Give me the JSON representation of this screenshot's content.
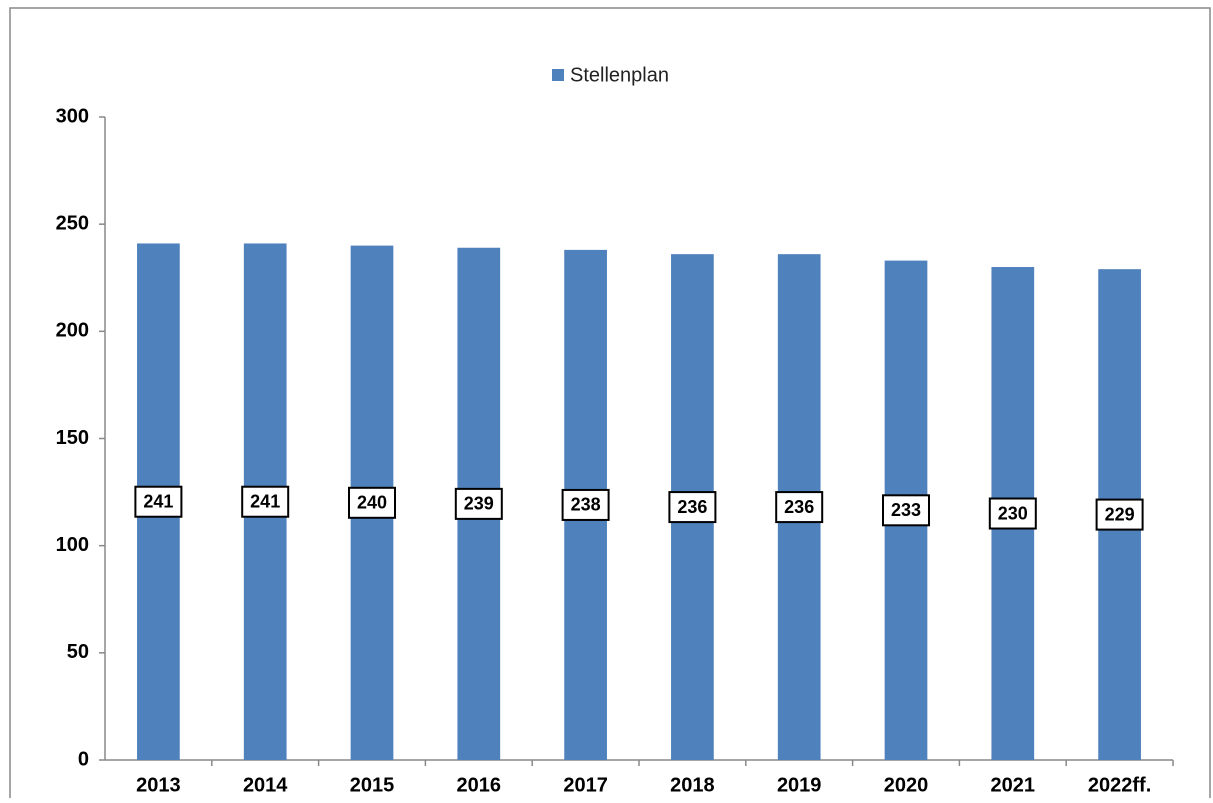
{
  "chart_data": {
    "type": "bar",
    "legend": "Stellenplan",
    "categories": [
      "2013",
      "2014",
      "2015",
      "2016",
      "2017",
      "2018",
      "2019",
      "2020",
      "2021",
      "2022ff."
    ],
    "series": [
      {
        "name": "Stellenplan",
        "color": "#4f81bd",
        "values": [
          241,
          241,
          240,
          239,
          238,
          236,
          236,
          233,
          230,
          229
        ]
      }
    ],
    "ylim": [
      0,
      300
    ],
    "yticks": [
      0,
      50,
      100,
      150,
      200,
      250,
      300
    ],
    "grid": false,
    "legend_position": "top"
  }
}
